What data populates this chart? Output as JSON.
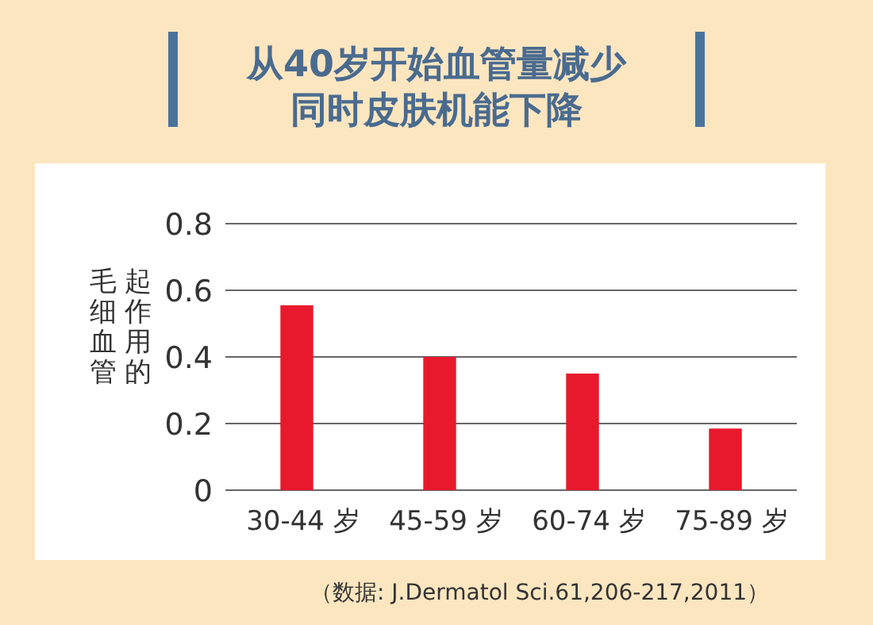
{
  "chart_data": {
    "type": "bar",
    "title": "从40岁开始血管量减少",
    "subtitle": "同时皮肤机能下降",
    "ylabel": "起作用的毛细血管",
    "categories": [
      "30-44 岁",
      "45-59 岁",
      "60-74 岁",
      "75-89 岁"
    ],
    "values": [
      0.555,
      0.4,
      0.35,
      0.185
    ],
    "color": "#e8192c",
    "ylim": [
      0,
      0.8
    ],
    "yticks": [
      0,
      0.2,
      0.4,
      0.6,
      0.8
    ],
    "grid": "y",
    "annotations": [
      "（数据: J.Dermatol Sci.61,206-217,2011）"
    ]
  }
}
